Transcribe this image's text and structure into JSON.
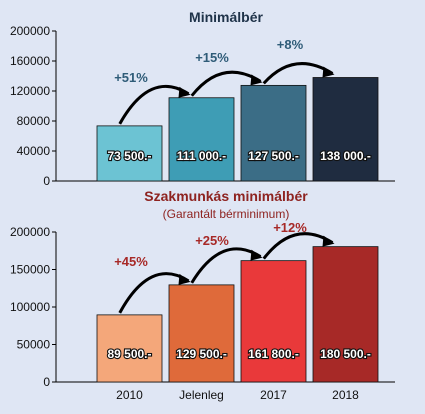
{
  "chart_data": [
    {
      "type": "bar",
      "title": "Minimálbér",
      "subtitle": "",
      "title_color": "#1f3349",
      "categories": [
        "2010",
        "Jelenleg",
        "2017",
        "2018"
      ],
      "values": [
        73500,
        111000,
        127500,
        138000
      ],
      "value_labels": [
        "73 500.-",
        "111 000.-",
        "127 500.-",
        "138 000.-"
      ],
      "bar_colors": [
        "#6cc3d3",
        "#3e9db5",
        "#3b6d86",
        "#1f2c40"
      ],
      "growth_labels": [
        "+51%",
        "+15%",
        "+8%"
      ],
      "growth_color": "#2f5c78",
      "ylim": [
        0,
        200000
      ],
      "yticks": [
        0,
        40000,
        80000,
        120000,
        160000,
        200000
      ],
      "show_category_labels": false
    },
    {
      "type": "bar",
      "title": "Szakmunkás minimálbér",
      "subtitle": "(Garantált bérminimum)",
      "title_color": "#8e2320",
      "categories": [
        "2010",
        "Jelenleg",
        "2017",
        "2018"
      ],
      "values": [
        89500,
        129500,
        161800,
        180500
      ],
      "value_labels": [
        "89 500.-",
        "129 500.-",
        "161 800.-",
        "180 500.-"
      ],
      "bar_colors": [
        "#f4a77a",
        "#df6a3a",
        "#e9393a",
        "#a72927"
      ],
      "growth_labels": [
        "+45%",
        "+25%",
        "+12%"
      ],
      "growth_color": "#a72927",
      "ylim": [
        0,
        200000
      ],
      "yticks": [
        0,
        50000,
        100000,
        150000,
        200000
      ],
      "show_category_labels": true
    }
  ]
}
